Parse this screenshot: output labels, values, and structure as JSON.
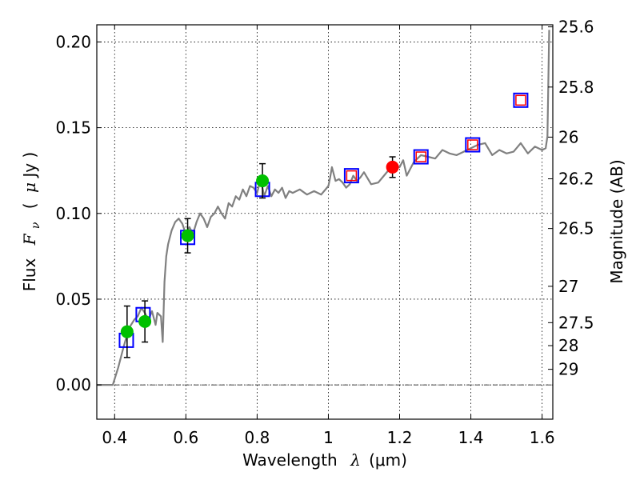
{
  "chart_data": {
    "type": "scatter",
    "xlabel": "Wavelength",
    "xlabel_symbol": "λ",
    "xlabel_unit": "(μm)",
    "ylabel": "Flux",
    "ylabel_symbol": "F",
    "ylabel_subscript": "ν",
    "ylabel_unit_open": "(",
    "ylabel_unit_mu": "μ",
    "ylabel_unit_rest": "Jy )",
    "y2label": "Magnitude (AB)",
    "xlim": [
      0.35,
      1.63
    ],
    "ylim": [
      -0.02,
      0.21
    ],
    "grid": true,
    "grid_style": "dotted",
    "x_ticks": [
      {
        "value": 0.4,
        "label": "0.4"
      },
      {
        "value": 0.6,
        "label": "0.6"
      },
      {
        "value": 0.8,
        "label": "0.8"
      },
      {
        "value": 1.0,
        "label": "1"
      },
      {
        "value": 1.2,
        "label": "1.2"
      },
      {
        "value": 1.4,
        "label": "1.4"
      },
      {
        "value": 1.6,
        "label": "1.6"
      }
    ],
    "y_ticks": [
      {
        "value": 0.0,
        "label": "0.00"
      },
      {
        "value": 0.05,
        "label": "0.05"
      },
      {
        "value": 0.1,
        "label": "0.10"
      },
      {
        "value": 0.15,
        "label": "0.15"
      },
      {
        "value": 0.2,
        "label": "0.20"
      }
    ],
    "y2_ticks": [
      {
        "flux": 0.2088,
        "label": "25.6"
      },
      {
        "flux": 0.1737,
        "label": "25.8"
      },
      {
        "flux": 0.1445,
        "label": "26"
      },
      {
        "flux": 0.1202,
        "label": "26.2"
      },
      {
        "flux": 0.0912,
        "label": "26.5"
      },
      {
        "flux": 0.0575,
        "label": "27"
      },
      {
        "flux": 0.0363,
        "label": "27.5"
      },
      {
        "flux": 0.0229,
        "label": "28"
      },
      {
        "flux": 0.0091,
        "label": "29"
      }
    ],
    "zero_line": true,
    "colors": {
      "spectrum": "#808080",
      "blue_box": "#0000ff",
      "red_box": "#ff0000",
      "green": "#00c000",
      "red_point": "#ff0000",
      "error": "#000000"
    },
    "series": [
      {
        "name": "model spectrum",
        "kind": "line",
        "x": [
          0.35,
          0.395,
          0.41,
          0.425,
          0.44,
          0.455,
          0.465,
          0.475,
          0.485,
          0.495,
          0.505,
          0.515,
          0.52,
          0.53,
          0.535,
          0.54,
          0.545,
          0.55,
          0.56,
          0.57,
          0.58,
          0.59,
          0.6,
          0.61,
          0.62,
          0.63,
          0.64,
          0.65,
          0.66,
          0.67,
          0.68,
          0.69,
          0.7,
          0.71,
          0.72,
          0.73,
          0.74,
          0.75,
          0.76,
          0.77,
          0.78,
          0.79,
          0.8,
          0.81,
          0.82,
          0.83,
          0.84,
          0.85,
          0.86,
          0.87,
          0.88,
          0.89,
          0.9,
          0.92,
          0.94,
          0.96,
          0.98,
          1.0,
          1.005,
          1.01,
          1.02,
          1.03,
          1.04,
          1.05,
          1.06,
          1.07,
          1.08,
          1.09,
          1.1,
          1.12,
          1.14,
          1.16,
          1.18,
          1.2,
          1.21,
          1.22,
          1.24,
          1.26,
          1.28,
          1.3,
          1.32,
          1.34,
          1.36,
          1.38,
          1.4,
          1.42,
          1.44,
          1.46,
          1.48,
          1.5,
          1.52,
          1.54,
          1.56,
          1.58,
          1.6,
          1.61,
          1.615,
          1.62
        ],
        "y": [
          0.0,
          0.0,
          0.01,
          0.022,
          0.033,
          0.038,
          0.04,
          0.045,
          0.042,
          0.038,
          0.043,
          0.035,
          0.042,
          0.04,
          0.025,
          0.06,
          0.075,
          0.082,
          0.09,
          0.095,
          0.097,
          0.094,
          0.088,
          0.092,
          0.088,
          0.095,
          0.1,
          0.097,
          0.092,
          0.098,
          0.1,
          0.104,
          0.1,
          0.097,
          0.106,
          0.104,
          0.11,
          0.108,
          0.114,
          0.11,
          0.116,
          0.115,
          0.112,
          0.12,
          0.11,
          0.116,
          0.11,
          0.114,
          0.112,
          0.115,
          0.109,
          0.113,
          0.112,
          0.114,
          0.111,
          0.113,
          0.111,
          0.116,
          0.121,
          0.127,
          0.119,
          0.12,
          0.118,
          0.115,
          0.117,
          0.122,
          0.119,
          0.121,
          0.124,
          0.117,
          0.118,
          0.123,
          0.128,
          0.127,
          0.131,
          0.122,
          0.13,
          0.134,
          0.133,
          0.132,
          0.137,
          0.135,
          0.134,
          0.136,
          0.138,
          0.14,
          0.141,
          0.134,
          0.137,
          0.135,
          0.136,
          0.141,
          0.135,
          0.139,
          0.137,
          0.138,
          0.145,
          0.207
        ]
      },
      {
        "name": "model photometry (blue squares)",
        "kind": "square",
        "x": [
          0.433,
          0.48,
          0.605,
          0.815,
          1.065,
          1.26,
          1.405,
          1.54
        ],
        "y": [
          0.026,
          0.041,
          0.086,
          0.114,
          0.122,
          0.133,
          0.14,
          0.166
        ]
      },
      {
        "name": "predicted (red squares)",
        "kind": "square-small",
        "x": [
          1.065,
          1.26,
          1.405,
          1.54
        ],
        "y": [
          0.122,
          0.133,
          0.14,
          0.166
        ]
      },
      {
        "name": "detections (green)",
        "kind": "circle",
        "x": [
          0.435,
          0.485,
          0.605,
          0.815
        ],
        "y": [
          0.031,
          0.037,
          0.087,
          0.119
        ],
        "err": [
          0.015,
          0.012,
          0.01,
          0.01
        ]
      },
      {
        "name": "detection (red)",
        "kind": "circle",
        "x": [
          1.18
        ],
        "y": [
          0.127
        ],
        "err": [
          0.006
        ]
      }
    ]
  }
}
